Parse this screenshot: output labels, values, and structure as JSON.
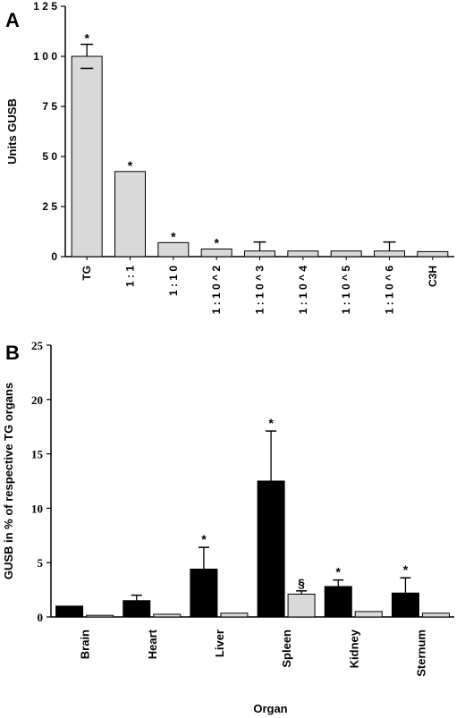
{
  "chart_data": [
    {
      "panel": "A",
      "type": "bar",
      "ylabel": "Units GUSB",
      "xlabel": "",
      "ylim": [
        0,
        125
      ],
      "yticks": [
        "0",
        "2 5",
        "5 0",
        "7 5",
        "1 0 0",
        "1 2 5"
      ],
      "categories": [
        "TG",
        "1 : 1",
        "1 : 1 0",
        "1 : 1 0 ^ 2",
        "1 : 1 0 ^ 3",
        "1 : 1 0 ^ 4",
        "1 : 1 0 ^ 5",
        "1 : 1 0 ^ 6",
        "C3H"
      ],
      "values": [
        100,
        42.5,
        7,
        3.8,
        2.8,
        2.8,
        2.8,
        2.8,
        2.5
      ],
      "error": [
        6,
        0,
        0,
        0,
        4.5,
        0,
        0,
        4.5,
        0
      ],
      "annotations": [
        "*",
        "*",
        "*",
        "*",
        "",
        "",
        "",
        "",
        ""
      ],
      "bar_color": "#d9d9d9"
    },
    {
      "panel": "B",
      "type": "bar",
      "ylabel": "GUSB in % of respective TG organs",
      "xlabel": "Organ",
      "ylim": [
        0,
        25
      ],
      "yticks": [
        "0",
        "5",
        "10",
        "15",
        "20",
        "25"
      ],
      "categories": [
        "Brain",
        "Heart",
        "Liver",
        "Spleen",
        "Kidney",
        "Sternum"
      ],
      "series": [
        {
          "values": [
            1.0,
            1.5,
            4.4,
            12.5,
            2.8,
            2.2
          ],
          "error": [
            0,
            0.5,
            2.0,
            4.6,
            0.6,
            1.4
          ],
          "annotations": [
            "",
            "",
            "*",
            "*",
            "*",
            "*"
          ],
          "color": "#000000"
        },
        {
          "values": [
            0.15,
            0.25,
            0.35,
            2.1,
            0.5,
            0.35
          ],
          "error": [
            0,
            0,
            0,
            0.3,
            0,
            0
          ],
          "annotations": [
            "",
            "",
            "",
            "§",
            "",
            ""
          ],
          "color": "#d9d9d9"
        }
      ]
    }
  ],
  "panel_labels": [
    "A",
    "B"
  ]
}
